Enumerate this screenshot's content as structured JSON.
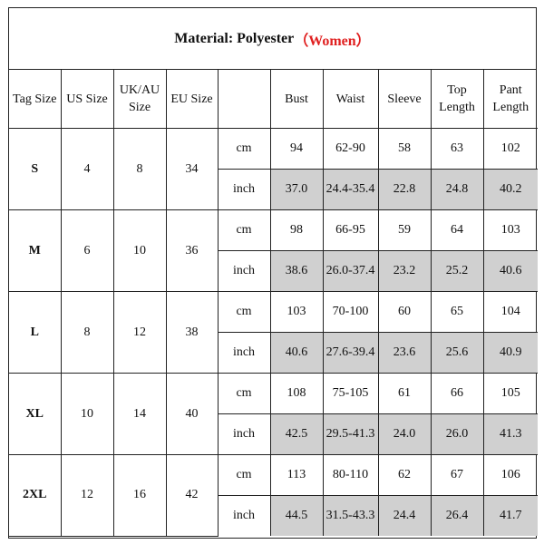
{
  "title": {
    "prefix": "Material: Polyester",
    "accent": "（Women）"
  },
  "headers": {
    "tag_size": "Tag Size",
    "us_size": "US Size",
    "ukau_line1": "UK/AU",
    "ukau_line2": "Size",
    "eu_size": "EU Size",
    "unit": "",
    "bust": "Bust",
    "waist": "Waist",
    "sleeve": "Sleeve",
    "top_line1": "Top",
    "top_line2": "Length",
    "pant_line1": "Pant",
    "pant_line2": "Length"
  },
  "units": {
    "cm": "cm",
    "inch": "inch"
  },
  "rows": [
    {
      "tag": "S",
      "us": "4",
      "ukau": "8",
      "eu": "34",
      "cm": {
        "bust": "94",
        "waist": "62-90",
        "sleeve": "58",
        "top": "63",
        "pant": "102"
      },
      "inch": {
        "bust": "37.0",
        "waist": "24.4-35.4",
        "sleeve": "22.8",
        "top": "24.8",
        "pant": "40.2"
      }
    },
    {
      "tag": "M",
      "us": "6",
      "ukau": "10",
      "eu": "36",
      "cm": {
        "bust": "98",
        "waist": "66-95",
        "sleeve": "59",
        "top": "64",
        "pant": "103"
      },
      "inch": {
        "bust": "38.6",
        "waist": "26.0-37.4",
        "sleeve": "23.2",
        "top": "25.2",
        "pant": "40.6"
      }
    },
    {
      "tag": "L",
      "us": "8",
      "ukau": "12",
      "eu": "38",
      "cm": {
        "bust": "103",
        "waist": "70-100",
        "sleeve": "60",
        "top": "65",
        "pant": "104"
      },
      "inch": {
        "bust": "40.6",
        "waist": "27.6-39.4",
        "sleeve": "23.6",
        "top": "25.6",
        "pant": "40.9"
      }
    },
    {
      "tag": "XL",
      "us": "10",
      "ukau": "14",
      "eu": "40",
      "cm": {
        "bust": "108",
        "waist": "75-105",
        "sleeve": "61",
        "top": "66",
        "pant": "105"
      },
      "inch": {
        "bust": "42.5",
        "waist": "29.5-41.3",
        "sleeve": "24.0",
        "top": "26.0",
        "pant": "41.3"
      }
    },
    {
      "tag": "2XL",
      "us": "12",
      "ukau": "16",
      "eu": "42",
      "cm": {
        "bust": "113",
        "waist": "80-110",
        "sleeve": "62",
        "top": "67",
        "pant": "106"
      },
      "inch": {
        "bust": "44.5",
        "waist": "31.5-43.3",
        "sleeve": "24.4",
        "top": "26.4",
        "pant": "41.7"
      }
    }
  ],
  "colors": {
    "accent": "#e02020",
    "shade": "#d0d0d0",
    "border": "#222222"
  }
}
